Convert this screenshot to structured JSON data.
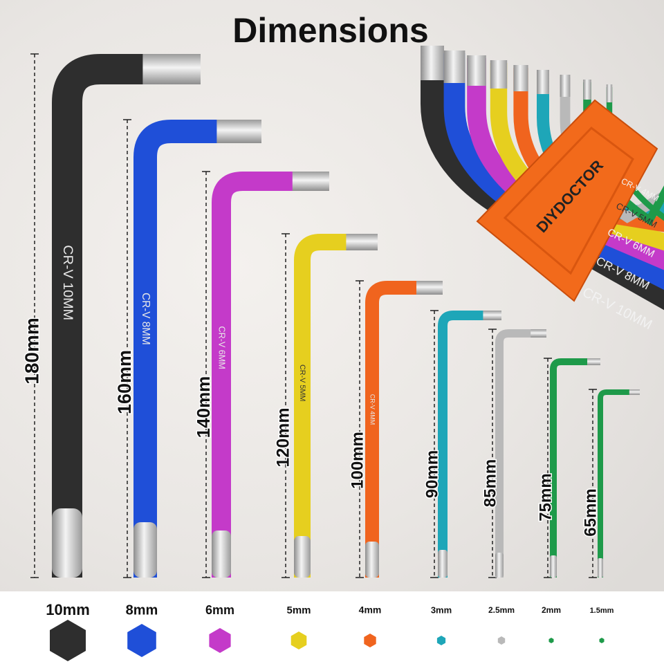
{
  "title": "Dimensions",
  "wrenches": [
    {
      "length": "180mm",
      "size": "10mm",
      "engraving": "CR-V 10MM",
      "color": "#2e2e2e"
    },
    {
      "length": "160mm",
      "size": "8mm",
      "engraving": "CR-V 8MM",
      "color": "#1f4fd8"
    },
    {
      "length": "140mm",
      "size": "6mm",
      "engraving": "CR-V 6MM",
      "color": "#c43ac9"
    },
    {
      "length": "120mm",
      "size": "5mm",
      "engraving": "CR-V 5MM",
      "color": "#e6cf1f"
    },
    {
      "length": "100mm",
      "size": "4mm",
      "engraving": "CR-V 4MM",
      "color": "#f0641e"
    },
    {
      "length": "90mm",
      "size": "3mm",
      "color": "#1ea6b8"
    },
    {
      "length": "85mm",
      "size": "2.5mm",
      "color": "#b9b9b9"
    },
    {
      "length": "75mm",
      "size": "2mm",
      "color": "#1e9a4a"
    },
    {
      "length": "65mm",
      "size": "1.5mm",
      "color": "#1e9a4a"
    }
  ],
  "holder": {
    "brand": "DIYDOCTOR",
    "color": "#f26a1b",
    "labels": [
      "CR-V 4MM",
      "CR-V 5MM",
      "CR-V 6MM",
      "CR-V 8MM",
      "CR-V 10MM"
    ]
  }
}
